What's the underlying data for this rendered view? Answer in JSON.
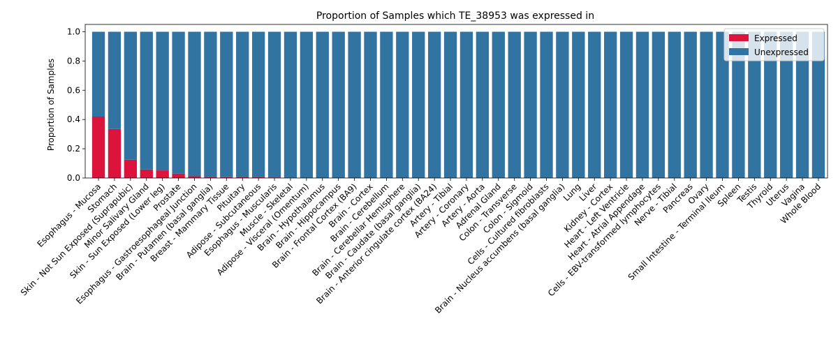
{
  "chart_data": {
    "type": "bar",
    "stacked": true,
    "title": "Proportion of Samples which TE_38953 was expressed in",
    "xlabel": "",
    "ylabel": "Proportion of Samples",
    "ylim": [
      0,
      1.05
    ],
    "yticks": [
      "0.0",
      "0.2",
      "0.4",
      "0.6",
      "0.8",
      "1.0"
    ],
    "grid": false,
    "legend_position": "top-right",
    "categories": [
      "Esophagus - Mucosa",
      "Stomach",
      "Skin - Not Sun Exposed (Suprapubic)",
      "Minor Salivary Gland",
      "Skin - Sun Exposed (Lower leg)",
      "Prostate",
      "Esophagus - Gastroesophageal Junction",
      "Brain - Putamen (basal ganglia)",
      "Breast - Mammary Tissue",
      "Pituitary",
      "Adipose - Subcutaneous",
      "Esophagus - Muscularis",
      "Muscle - Skeletal",
      "Adipose - Visceral (Omentum)",
      "Brain - Hypothalamus",
      "Brain - Hippocampus",
      "Brain - Frontal Cortex (BA9)",
      "Brain - Cortex",
      "Brain - Cerebellum",
      "Brain - Cerebellar Hemisphere",
      "Brain - Caudate (basal ganglia)",
      "Brain - Anterior cingulate cortex (BA24)",
      "Artery - Tibial",
      "Artery - Coronary",
      "Artery - Aorta",
      "Adrenal Gland",
      "Colon - Transverse",
      "Colon - Sigmoid",
      "Cells - Cultured fibroblasts",
      "Brain - Nucleus accumbens (basal ganglia)",
      "Lung",
      "Liver",
      "Kidney - Cortex",
      "Heart - Left Ventricle",
      "Heart - Atrial Appendage",
      "Cells - EBV-transformed lymphocytes",
      "Nerve - Tibial",
      "Pancreas",
      "Ovary",
      "Small Intestine - Terminal Ileum",
      "Spleen",
      "Testis",
      "Thyroid",
      "Uterus",
      "Vagina",
      "Whole Blood"
    ],
    "series": [
      {
        "name": "Expressed",
        "color": "#dc143c",
        "values": [
          0.42,
          0.335,
          0.125,
          0.058,
          0.052,
          0.03,
          0.012,
          0.008,
          0.006,
          0.005,
          0.005,
          0.004,
          0,
          0,
          0,
          0,
          0,
          0,
          0,
          0,
          0,
          0,
          0,
          0,
          0,
          0,
          0,
          0,
          0,
          0,
          0,
          0,
          0,
          0,
          0,
          0,
          0,
          0,
          0,
          0,
          0,
          0,
          0,
          0,
          0,
          0
        ]
      },
      {
        "name": "Unexpressed",
        "color": "#3274a1",
        "values": [
          0.58,
          0.665,
          0.875,
          0.942,
          0.948,
          0.97,
          0.988,
          0.992,
          0.994,
          0.995,
          0.995,
          0.996,
          1,
          1,
          1,
          1,
          1,
          1,
          1,
          1,
          1,
          1,
          1,
          1,
          1,
          1,
          1,
          1,
          1,
          1,
          1,
          1,
          1,
          1,
          1,
          1,
          1,
          1,
          1,
          1,
          1,
          1,
          1,
          1,
          1,
          1
        ]
      }
    ]
  }
}
